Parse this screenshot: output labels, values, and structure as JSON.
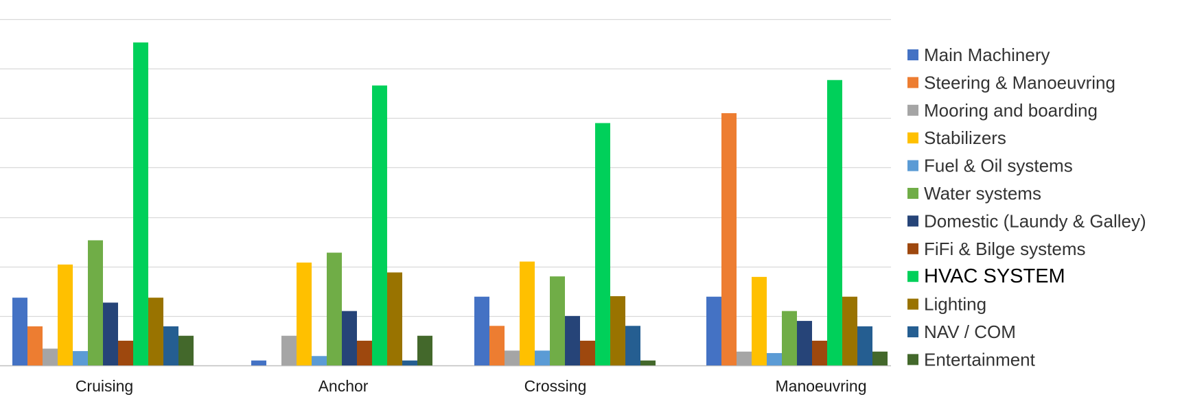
{
  "chart_data": {
    "type": "bar",
    "title": "",
    "xlabel": "",
    "ylabel": "",
    "ylim": [
      0,
      7
    ],
    "grid": true,
    "legend_position": "right",
    "categories": [
      "Cruising",
      "Anchor",
      "Crossing",
      "Manoeuvring"
    ],
    "series": [
      {
        "name": "Main Machinery",
        "color": "#4472C4",
        "values": [
          1.37,
          0.1,
          1.39,
          1.39
        ]
      },
      {
        "name": "Steering & Manoeuvring",
        "color": "#ED7D31",
        "values": [
          0.79,
          0.0,
          0.8,
          5.1
        ]
      },
      {
        "name": "Mooring and boarding",
        "color": "#A5A5A5",
        "values": [
          0.34,
          0.6,
          0.3,
          0.28
        ]
      },
      {
        "name": "Stabilizers",
        "color": "#FFC000",
        "values": [
          2.04,
          2.08,
          2.1,
          1.79
        ]
      },
      {
        "name": "Fuel & Oil systems",
        "color": "#5B9BD5",
        "values": [
          0.29,
          0.19,
          0.3,
          0.25
        ]
      },
      {
        "name": "Water systems",
        "color": "#70AD47",
        "values": [
          2.53,
          2.28,
          1.8,
          1.1
        ]
      },
      {
        "name": "Domestic (Laundy & Galley)",
        "color": "#264478",
        "values": [
          1.27,
          1.1,
          1.0,
          0.9
        ]
      },
      {
        "name": "FiFi & Bilge systems",
        "color": "#9E480E",
        "values": [
          0.5,
          0.5,
          0.5,
          0.5
        ]
      },
      {
        "name": "HVAC SYSTEM",
        "color": "#00D05A",
        "values": [
          6.53,
          5.66,
          4.9,
          5.77
        ]
      },
      {
        "name": "Lighting",
        "color": "#997300",
        "values": [
          1.37,
          1.88,
          1.4,
          1.39
        ]
      },
      {
        "name": "NAV / COM",
        "color": "#255E91",
        "values": [
          0.79,
          0.1,
          0.8,
          0.79
        ]
      },
      {
        "name": "Entertainment",
        "color": "#43682B",
        "values": [
          0.6,
          0.6,
          0.1,
          0.28
        ]
      }
    ]
  }
}
